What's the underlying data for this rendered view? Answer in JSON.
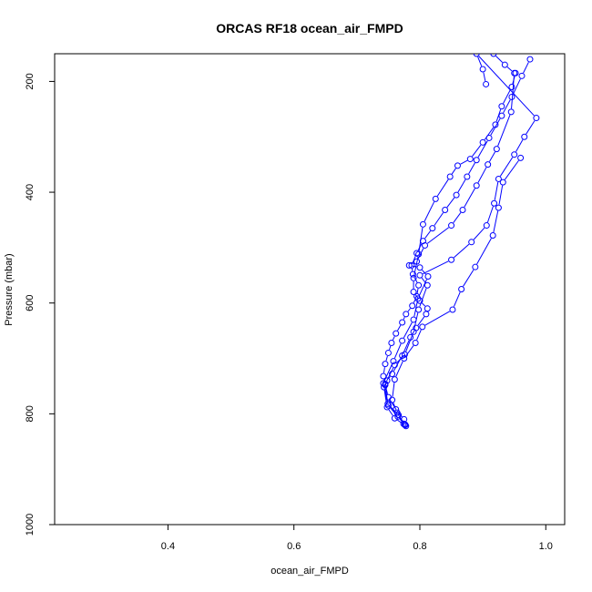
{
  "chart_data": {
    "type": "line",
    "title": "ORCAS RF18 ocean_air_FMPD",
    "xlabel": "ocean_air_FMPD",
    "ylabel": "Pressure (mbar)",
    "xlim": [
      0.22,
      1.03
    ],
    "ylim": [
      1000,
      150
    ],
    "y_reversed": true,
    "x_ticks": [
      "0.4",
      "0.6",
      "0.8",
      "1.0"
    ],
    "x_tick_values": [
      0.4,
      0.6,
      0.8,
      1.0
    ],
    "y_ticks": [
      "200",
      "400",
      "600",
      "800",
      "1000"
    ],
    "y_tick_values": [
      200,
      400,
      600,
      800,
      1000
    ],
    "grid": false,
    "legend": "none",
    "series_color": "#0000ff",
    "series": [
      {
        "x": [
          0.777,
          0.775,
          0.762,
          0.75,
          0.745,
          0.742,
          0.745,
          0.75,
          0.755,
          0.762,
          0.772,
          0.778,
          0.788,
          0.795,
          0.798,
          0.789,
          0.787,
          0.795,
          0.805,
          0.82,
          0.84,
          0.858,
          0.875,
          0.89,
          0.91,
          0.93,
          0.946,
          0.962,
          0.975
        ],
        "y": [
          820,
          810,
          792,
          770,
          748,
          732,
          710,
          690,
          672,
          655,
          635,
          620,
          605,
          588,
          568,
          548,
          532,
          510,
          488,
          465,
          432,
          405,
          372,
          342,
          302,
          262,
          228,
          190,
          160
        ]
      },
      {
        "x": [
          0.776,
          0.76,
          0.748,
          0.743,
          0.748,
          0.756,
          0.772,
          0.785,
          0.794,
          0.81,
          0.812,
          0.8,
          0.79,
          0.79,
          0.798,
          0.805,
          0.825,
          0.848,
          0.86,
          0.88,
          0.9,
          0.92,
          0.93,
          0.946,
          0.952
        ],
        "y": [
          820,
          808,
          788,
          752,
          740,
          728,
          695,
          662,
          645,
          620,
          610,
          596,
          580,
          555,
          512,
          458,
          412,
          372,
          352,
          340,
          310,
          278,
          245,
          210,
          185
        ]
      },
      {
        "x": [
          0.778,
          0.765,
          0.75,
          0.742,
          0.758,
          0.772,
          0.79,
          0.797,
          0.813,
          0.8,
          0.783,
          0.795,
          0.808,
          0.85,
          0.868,
          0.89,
          0.908,
          0.922,
          0.945,
          0.95,
          0.935,
          0.917
        ],
        "y": [
          822,
          805,
          785,
          745,
          705,
          668,
          630,
          592,
          552,
          536,
          532,
          525,
          496,
          460,
          432,
          388,
          350,
          322,
          255,
          185,
          170,
          150
        ]
      },
      {
        "x": [
          0.774,
          0.764,
          0.756,
          0.76,
          0.775,
          0.793,
          0.804,
          0.852,
          0.866,
          0.888,
          0.916,
          0.925,
          0.932,
          0.96
        ],
        "y": [
          818,
          798,
          775,
          738,
          700,
          672,
          643,
          612,
          575,
          535,
          478,
          428,
          382,
          338
        ]
      },
      {
        "x": [
          0.776,
          0.766,
          0.749,
          0.745,
          0.76,
          0.776,
          0.79,
          0.798,
          0.812,
          0.8,
          0.85,
          0.882,
          0.906,
          0.918,
          0.925,
          0.95,
          0.966,
          0.985,
          0.89,
          0.9,
          0.905
        ],
        "y": [
          819,
          802,
          782,
          746,
          712,
          693,
          652,
          612,
          568,
          550,
          522,
          490,
          460,
          420,
          376,
          332,
          300,
          266,
          150,
          178,
          205
        ]
      }
    ]
  }
}
